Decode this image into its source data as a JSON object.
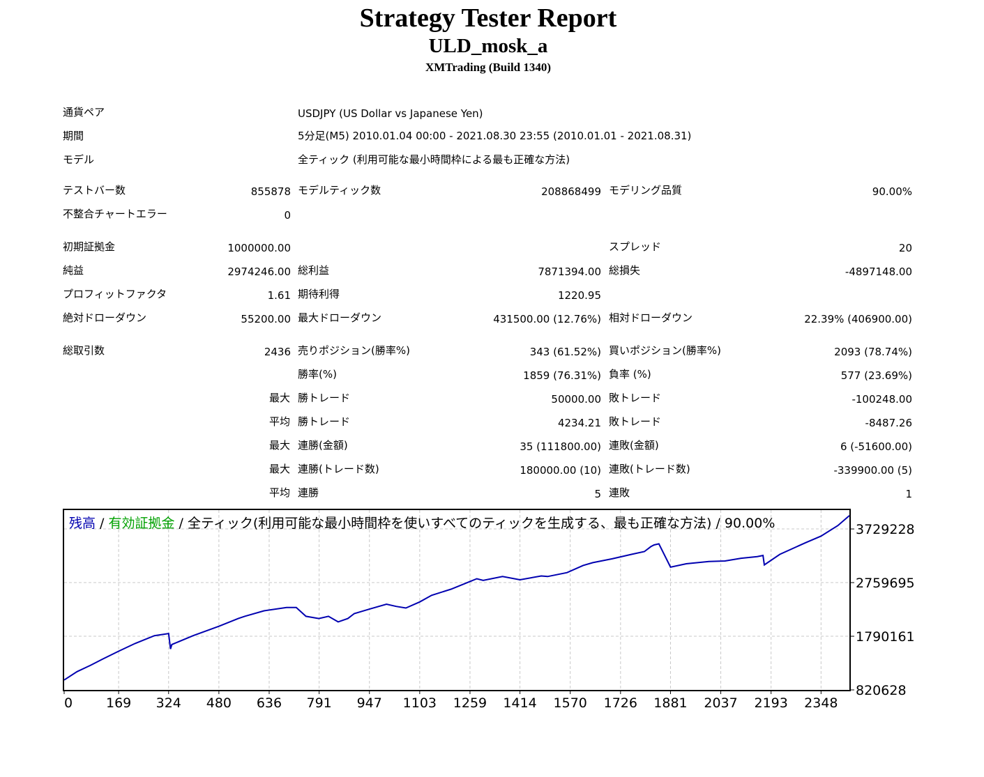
{
  "report": {
    "title": "Strategy Tester Report",
    "subtitle": "ULD_mosk_a",
    "build": "XMTrading (Build 1340)"
  },
  "info": {
    "pair_label": "通貨ペア",
    "pair_value": "USDJPY (US Dollar vs Japanese Yen)",
    "period_label": "期間",
    "period_value": "5分足(M5) 2010.01.04 00:00 - 2021.08.30 23:55 (2010.01.01 - 2021.08.31)",
    "model_label": "モデル",
    "model_value": "全ティック (利用可能な最小時間枠による最も正確な方法)"
  },
  "bars": {
    "bars_label": "テストバー数",
    "bars_value": "855878",
    "ticks_label": "モデルティック数",
    "ticks_value": "208868499",
    "quality_label": "モデリング品質",
    "quality_value": "90.00%",
    "errors_label": "不整合チャートエラー",
    "errors_value": "0"
  },
  "money": {
    "deposit_label": "初期証拠金",
    "deposit_value": "1000000.00",
    "spread_label": "スプレッド",
    "spread_value": "20",
    "net_label": "純益",
    "net_value": "2974246.00",
    "gross_profit_label": "総利益",
    "gross_profit_value": "7871394.00",
    "gross_loss_label": "総損失",
    "gross_loss_value": "-4897148.00",
    "pf_label": "プロフィットファクタ",
    "pf_value": "1.61",
    "payoff_label": "期待利得",
    "payoff_value": "1220.95",
    "abs_dd_label": "絶対ドローダウン",
    "abs_dd_value": "55200.00",
    "max_dd_label": "最大ドローダウン",
    "max_dd_value": "431500.00 (12.76%)",
    "rel_dd_label": "相対ドローダウン",
    "rel_dd_value": "22.39% (406900.00)"
  },
  "trades": {
    "total_label": "総取引数",
    "total_value": "2436",
    "short_label": "売りポジション(勝率%)",
    "short_value": "343 (61.52%)",
    "long_label": "買いポジション(勝率%)",
    "long_value": "2093 (78.74%)",
    "win_label": "勝率(%)",
    "win_value": "1859 (76.31%)",
    "loss_label": "負率 (%)",
    "loss_value": "577 (23.69%)",
    "max_prefix": "最大",
    "avg_prefix": "平均",
    "largest_win_label": "勝トレード",
    "largest_win_value": "50000.00",
    "largest_loss_label": "敗トレード",
    "largest_loss_value": "-100248.00",
    "avg_win_label": "勝トレード",
    "avg_win_value": "4234.21",
    "avg_loss_label": "敗トレード",
    "avg_loss_value": "-8487.26",
    "max_cons_win_amt_label": "連勝(金額)",
    "max_cons_win_amt_value": "35 (111800.00)",
    "max_cons_loss_amt_label": "連敗(金額)",
    "max_cons_loss_amt_value": "6 (-51600.00)",
    "max_cons_win_cnt_label": "連勝(トレード数)",
    "max_cons_win_cnt_value": "180000.00 (10)",
    "max_cons_loss_cnt_label": "連敗(トレード数)",
    "max_cons_loss_cnt_value": "-339900.00 (5)",
    "avg_cons_win_label": "連勝",
    "avg_cons_win_value": "5",
    "avg_cons_loss_label": "連敗",
    "avg_cons_loss_value": "1"
  },
  "chart_data": {
    "type": "line",
    "title_parts": {
      "balance": "残高",
      "sep1": " / ",
      "equity": "有効証拠金",
      "rest": " / 全ティック(利用可能な最小時間枠を使いすべてのティックを生成する、最も正確な方法) / 90.00%"
    },
    "colors": {
      "balance": "#0000b0",
      "equity": "#00a000",
      "grid": "#c8c8c8"
    },
    "x_ticks": [
      0,
      169,
      324,
      480,
      636,
      791,
      947,
      1103,
      1259,
      1414,
      1570,
      1726,
      1881,
      2037,
      2193,
      2348
    ],
    "y_ticks": [
      820628,
      1790161,
      2759695,
      3729228
    ],
    "xlim": [
      0,
      2436
    ],
    "ylim": [
      820628,
      4070000
    ],
    "series": [
      {
        "name": "残高",
        "x": [
          0,
          40,
          80,
          120,
          169,
          220,
          280,
          324,
          330,
          334,
          400,
          480,
          540,
          560,
          620,
          690,
          720,
          750,
          790,
          820,
          850,
          880,
          900,
          947,
          1000,
          1030,
          1060,
          1103,
          1140,
          1200,
          1259,
          1280,
          1300,
          1360,
          1414,
          1480,
          1500,
          1560,
          1610,
          1640,
          1700,
          1760,
          1800,
          1820,
          1830,
          1845,
          1881,
          1930,
          2000,
          2050,
          2100,
          2150,
          2168,
          2172,
          2220,
          2300,
          2348,
          2400,
          2436
        ],
        "y": [
          1000000,
          1150000,
          1260000,
          1380000,
          1520000,
          1660000,
          1800000,
          1840000,
          1560000,
          1640000,
          1800000,
          1970000,
          2110000,
          2150000,
          2250000,
          2310000,
          2310000,
          2150000,
          2110000,
          2150000,
          2050000,
          2110000,
          2200000,
          2280000,
          2370000,
          2330000,
          2300000,
          2410000,
          2530000,
          2640000,
          2780000,
          2830000,
          2800000,
          2870000,
          2810000,
          2880000,
          2870000,
          2940000,
          3070000,
          3120000,
          3190000,
          3270000,
          3320000,
          3410000,
          3440000,
          3460000,
          3040000,
          3100000,
          3140000,
          3150000,
          3200000,
          3230000,
          3250000,
          3080000,
          3270000,
          3480000,
          3600000,
          3790000,
          3970000
        ]
      }
    ]
  }
}
